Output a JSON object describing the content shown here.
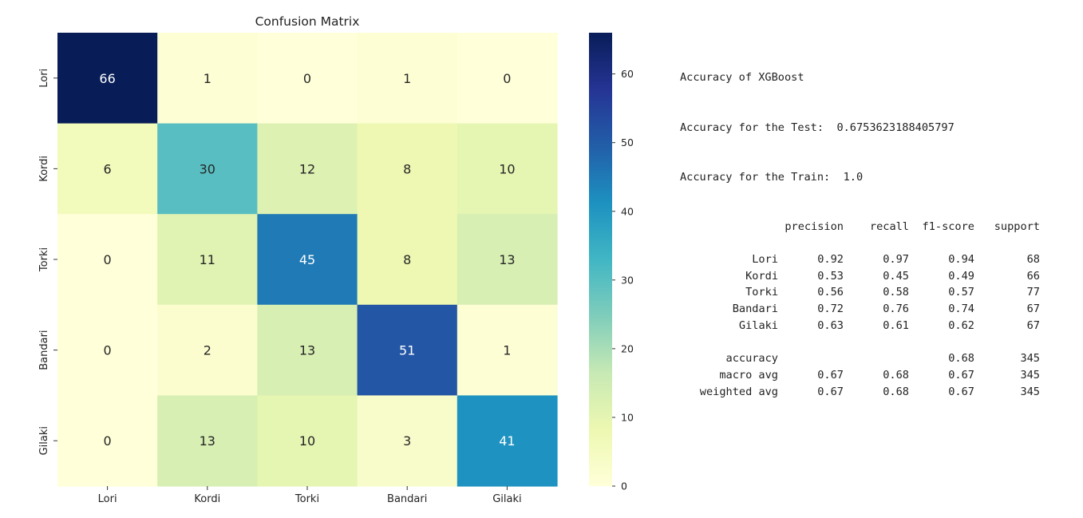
{
  "chart_data": {
    "type": "heatmap",
    "title": "Confusion Matrix",
    "row_labels": [
      "Lori",
      "Kordi",
      "Torki",
      "Bandari",
      "Gilaki"
    ],
    "col_labels": [
      "Lori",
      "Kordi",
      "Torki",
      "Bandari",
      "Gilaki"
    ],
    "values": [
      [
        66,
        1,
        0,
        1,
        0
      ],
      [
        6,
        30,
        12,
        8,
        10
      ],
      [
        0,
        11,
        45,
        8,
        13
      ],
      [
        0,
        2,
        13,
        51,
        1
      ],
      [
        0,
        13,
        10,
        3,
        41
      ]
    ],
    "colormap": "YlGnBu",
    "vmin": 0,
    "vmax": 66,
    "colorbar_ticks": [
      0,
      10,
      20,
      30,
      40,
      50,
      60
    ],
    "annotations": true,
    "grid": false
  },
  "report": {
    "title": "Accuracy of XGBoost",
    "test_label": "Accuracy for the Test:",
    "test_value": "0.6753623188405797",
    "train_label": "Accuracy for the Train:",
    "train_value": "1.0",
    "headers": [
      "precision",
      "recall",
      "f1-score",
      "support"
    ],
    "rows": [
      {
        "label": "Lori",
        "precision": "0.92",
        "recall": "0.97",
        "f1": "0.94",
        "support": "68"
      },
      {
        "label": "Kordi",
        "precision": "0.53",
        "recall": "0.45",
        "f1": "0.49",
        "support": "66"
      },
      {
        "label": "Torki",
        "precision": "0.56",
        "recall": "0.58",
        "f1": "0.57",
        "support": "77"
      },
      {
        "label": "Bandari",
        "precision": "0.72",
        "recall": "0.76",
        "f1": "0.74",
        "support": "67"
      },
      {
        "label": "Gilaki",
        "precision": "0.63",
        "recall": "0.61",
        "f1": "0.62",
        "support": "67"
      }
    ],
    "summary": [
      {
        "label": "accuracy",
        "precision": "",
        "recall": "",
        "f1": "0.68",
        "support": "345"
      },
      {
        "label": "macro avg",
        "precision": "0.67",
        "recall": "0.68",
        "f1": "0.67",
        "support": "345"
      },
      {
        "label": "weighted avg",
        "precision": "0.67",
        "recall": "0.68",
        "f1": "0.67",
        "support": "345"
      }
    ]
  }
}
